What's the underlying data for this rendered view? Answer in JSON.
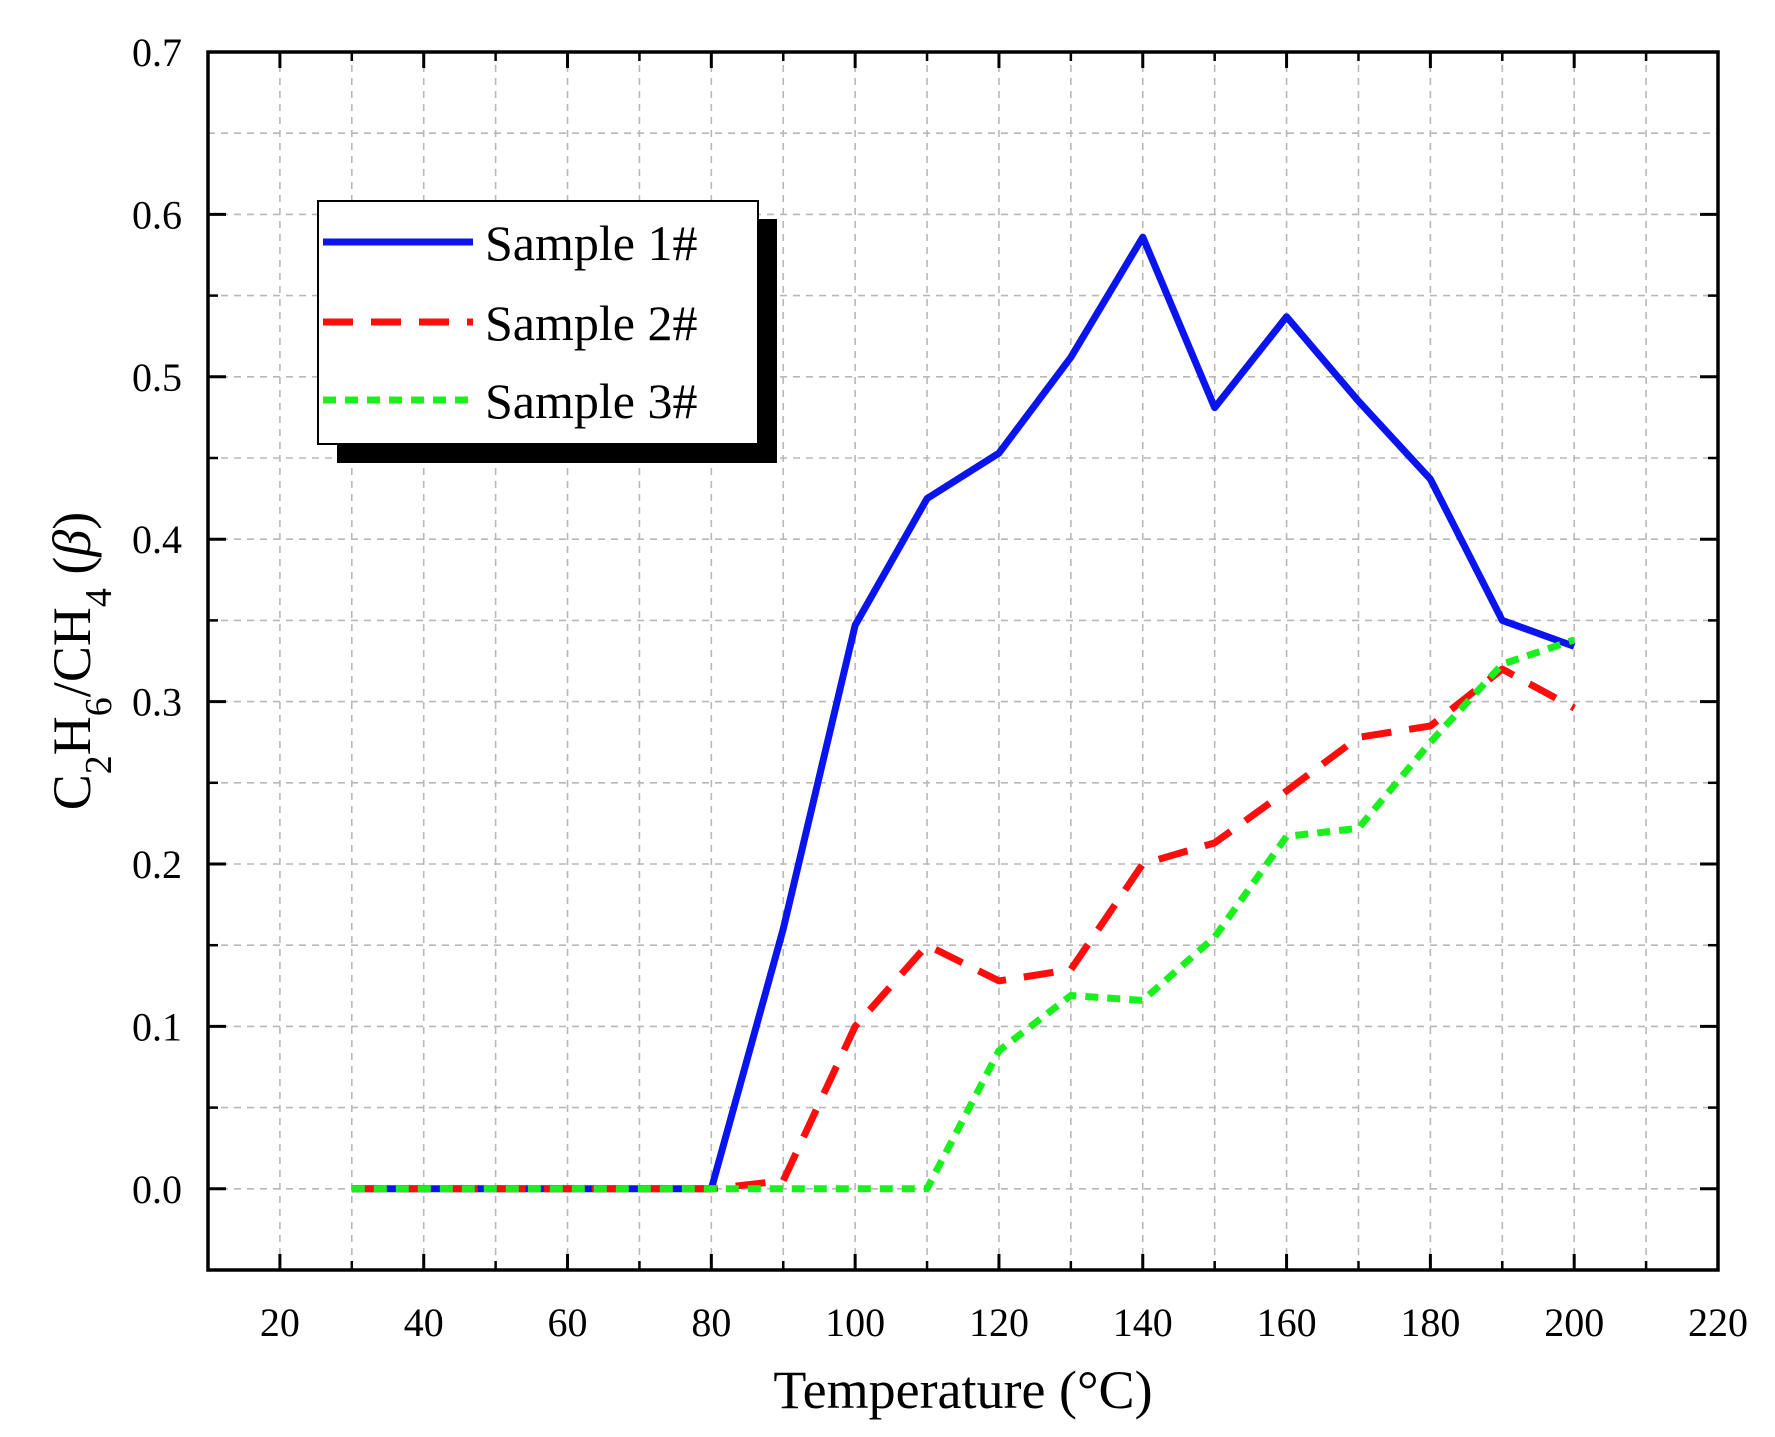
{
  "chart_data": {
    "type": "line",
    "xlabel": "Temperature (°C)",
    "ylabel": {
      "parts": [
        "C",
        "2",
        "H",
        "6",
        "/CH",
        "4",
        " (",
        "β",
        ")"
      ]
    },
    "xlim": [
      10,
      220
    ],
    "ylim": [
      -0.05,
      0.7
    ],
    "x_ticks": [
      20,
      40,
      60,
      80,
      100,
      120,
      140,
      160,
      180,
      200,
      220
    ],
    "y_ticks": [
      0.0,
      0.1,
      0.2,
      0.3,
      0.4,
      0.5,
      0.6,
      0.7
    ],
    "x_tick_labels": [
      "20",
      "40",
      "60",
      "80",
      "100",
      "120",
      "140",
      "160",
      "180",
      "200",
      "220"
    ],
    "y_tick_labels": [
      "0.0",
      "0.1",
      "0.2",
      "0.3",
      "0.4",
      "0.5",
      "0.6",
      "0.7"
    ],
    "grid": true,
    "legend_position": "top-left",
    "x": [
      30,
      40,
      50,
      60,
      70,
      80,
      90,
      100,
      110,
      120,
      130,
      140,
      150,
      160,
      170,
      180,
      190,
      200
    ],
    "series": [
      {
        "name": "Sample 1#",
        "color": "#0a14ee",
        "style": "solid",
        "values": [
          0,
          0,
          0,
          0,
          0,
          0,
          0.16,
          0.347,
          0.425,
          0.453,
          0.512,
          0.586,
          0.481,
          0.537,
          0.485,
          0.437,
          0.35,
          0.334
        ]
      },
      {
        "name": "Sample 2#",
        "color": "#ff0d0d",
        "style": "dash",
        "values": [
          0,
          0,
          0,
          0,
          0,
          0,
          0.005,
          0.1,
          0.15,
          0.128,
          0.135,
          0.2,
          0.213,
          0.245,
          0.278,
          0.285,
          0.32,
          0.296
        ]
      },
      {
        "name": "Sample 3#",
        "color": "#19f01c",
        "style": "short-dash",
        "values": [
          0,
          0,
          0,
          0,
          0,
          0,
          0,
          0,
          0,
          0.085,
          0.119,
          0.116,
          0.155,
          0.217,
          0.222,
          0.275,
          0.323,
          0.338
        ]
      }
    ]
  }
}
